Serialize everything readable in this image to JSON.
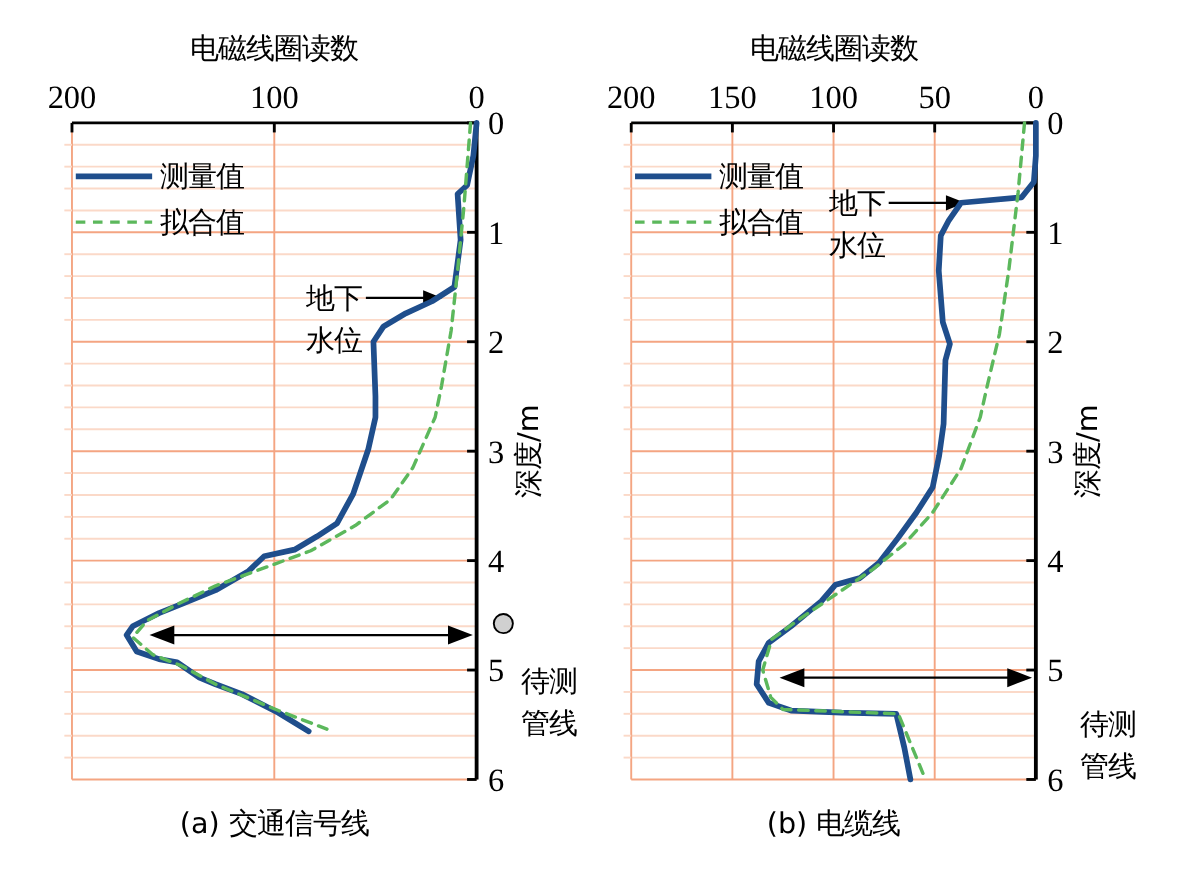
{
  "chart_data": [
    {
      "type": "line",
      "title": "(a) 交通信号线",
      "xlabel": "电磁线圈读数",
      "ylabel": "深度/m",
      "xlim": [
        200,
        0
      ],
      "ylim": [
        6,
        0
      ],
      "xticks": [
        200,
        100,
        0
      ],
      "yticks": [
        0,
        {
          "value": 0.2,
          "label": null
        },
        {
          "value": 0.4,
          "label": null
        },
        {
          "value": 0.6,
          "label": null
        },
        {
          "value": 0.8,
          "label": null
        },
        1,
        {
          "value": 1.2,
          "label": null
        },
        {
          "value": 1.4,
          "label": null
        },
        {
          "value": 1.6,
          "label": null
        },
        {
          "value": 1.8,
          "label": null
        },
        2,
        {
          "value": 2.2,
          "label": null
        },
        {
          "value": 2.4,
          "label": null
        },
        {
          "value": 2.6,
          "label": null
        },
        {
          "value": 2.8,
          "label": null
        },
        3,
        {
          "value": 3.2,
          "label": null
        },
        {
          "value": 3.4,
          "label": null
        },
        {
          "value": 3.6,
          "label": null
        },
        {
          "value": 3.8,
          "label": null
        },
        4,
        {
          "value": 4.2,
          "label": null
        },
        {
          "value": 4.4,
          "label": null
        },
        {
          "value": 4.6,
          "label": null
        },
        {
          "value": 4.8,
          "label": null
        },
        5,
        {
          "value": 5.2,
          "label": null
        },
        {
          "value": 5.4,
          "label": null
        },
        {
          "value": 5.6,
          "label": null
        },
        {
          "value": 5.8,
          "label": null
        },
        6
      ],
      "grid": true,
      "legend": "top left",
      "series": [
        {
          "name": "测量值",
          "color": "#1f4e8c",
          "line_style": "solid",
          "x": [
            0,
            1.6,
            4.7,
            9.4,
            7.9,
            11,
            22,
            35,
            46,
            51,
            50,
            50,
            53.5,
            61,
            69,
            79,
            90,
            105,
            113,
            129,
            145,
            157,
            170,
            173,
            168,
            157,
            148,
            137,
            129,
            116,
            98,
            83
          ],
          "values": [
            0,
            0.3,
            0.57,
            0.65,
            1.07,
            1.5,
            1.63,
            1.74,
            1.86,
            2.0,
            2.5,
            2.69,
            2.98,
            3.39,
            3.66,
            3.78,
            3.9,
            3.96,
            4.1,
            4.27,
            4.39,
            4.48,
            4.6,
            4.68,
            4.83,
            4.9,
            4.93,
            5.07,
            5.13,
            5.22,
            5.39,
            5.56
          ]
        },
        {
          "name": "拟合值",
          "color": "#5cb85c",
          "line_style": "dashed",
          "x": [
            3,
            6.3,
            9.4,
            12.6,
            17.3,
            20.5,
            31.5,
            42.5,
            60,
            82,
            104,
            129,
            148,
            163,
            170,
            160,
            146,
            129,
            98,
            74
          ],
          "values": [
            0,
            0.77,
            1.35,
            1.9,
            2.4,
            2.69,
            3.15,
            3.44,
            3.68,
            3.91,
            4.06,
            4.23,
            4.4,
            4.55,
            4.7,
            4.86,
            4.96,
            5.13,
            5.37,
            5.54
          ]
        }
      ],
      "annotations": [
        {
          "text": "地下水位",
          "x": 17,
          "y": 1.6
        }
      ],
      "ref_lines": [
        {
          "axis": "y",
          "value": 4.68,
          "label": "待测管线"
        }
      ]
    },
    {
      "type": "line",
      "title": "(b) 电缆线",
      "xlabel": "电磁线圈读数",
      "ylabel": "深度/m",
      "xlim": [
        200,
        0
      ],
      "ylim": [
        6,
        0
      ],
      "xticks": [
        200,
        150,
        100,
        50,
        0
      ],
      "yticks": [
        0,
        {
          "value": 0.2,
          "label": null
        },
        {
          "value": 0.4,
          "label": null
        },
        {
          "value": 0.6,
          "label": null
        },
        {
          "value": 0.8,
          "label": null
        },
        1,
        {
          "value": 1.2,
          "label": null
        },
        {
          "value": 1.4,
          "label": null
        },
        {
          "value": 1.6,
          "label": null
        },
        {
          "value": 1.8,
          "label": null
        },
        2,
        {
          "value": 2.2,
          "label": null
        },
        {
          "value": 2.4,
          "label": null
        },
        {
          "value": 2.6,
          "label": null
        },
        {
          "value": 2.8,
          "label": null
        },
        3,
        {
          "value": 3.2,
          "label": null
        },
        {
          "value": 3.4,
          "label": null
        },
        {
          "value": 3.6,
          "label": null
        },
        {
          "value": 3.8,
          "label": null
        },
        4,
        {
          "value": 4.2,
          "label": null
        },
        {
          "value": 4.4,
          "label": null
        },
        {
          "value": 4.6,
          "label": null
        },
        {
          "value": 4.8,
          "label": null
        },
        5,
        {
          "value": 5.2,
          "label": null
        },
        {
          "value": 5.4,
          "label": null
        },
        {
          "value": 5.6,
          "label": null
        },
        {
          "value": 5.8,
          "label": null
        },
        6
      ],
      "grid": true,
      "legend": "top left",
      "series": [
        {
          "name": "测量值",
          "color": "#1f4e8c",
          "line_style": "solid",
          "x": [
            0,
            0,
            1,
            7,
            37,
            43,
            47,
            48,
            46,
            42.5,
            44.7,
            45.6,
            47.8,
            51,
            59,
            68,
            77.5,
            87,
            99,
            106,
            121,
            132,
            137,
            138,
            132,
            121,
            96,
            69,
            65,
            62
          ],
          "values": [
            0,
            0.3,
            0.54,
            0.68,
            0.73,
            0.89,
            1.03,
            1.35,
            1.82,
            2.02,
            2.17,
            2.75,
            3.04,
            3.33,
            3.56,
            3.79,
            4.02,
            4.16,
            4.22,
            4.37,
            4.6,
            4.75,
            4.92,
            5.13,
            5.3,
            5.37,
            5.39,
            5.4,
            5.71,
            6.0
          ]
        },
        {
          "name": "拟合值",
          "color": "#5cb85c",
          "line_style": "dashed",
          "x": [
            5.6,
            8.8,
            13.4,
            18,
            24,
            27.5,
            37,
            51,
            65,
            80.6,
            99,
            118,
            130.6,
            135,
            131,
            125,
            68,
            55
          ],
          "values": [
            0,
            0.64,
            1.35,
            1.93,
            2.4,
            2.69,
            3.16,
            3.56,
            3.85,
            4.08,
            4.31,
            4.55,
            4.72,
            5.0,
            5.25,
            5.36,
            5.4,
            5.98
          ]
        }
      ],
      "annotations": [
        {
          "text": "地下水位",
          "x": 35,
          "y": 0.73
        }
      ],
      "ref_lines": [
        {
          "axis": "y",
          "value": 5.07,
          "label": "待测管线"
        }
      ]
    }
  ]
}
